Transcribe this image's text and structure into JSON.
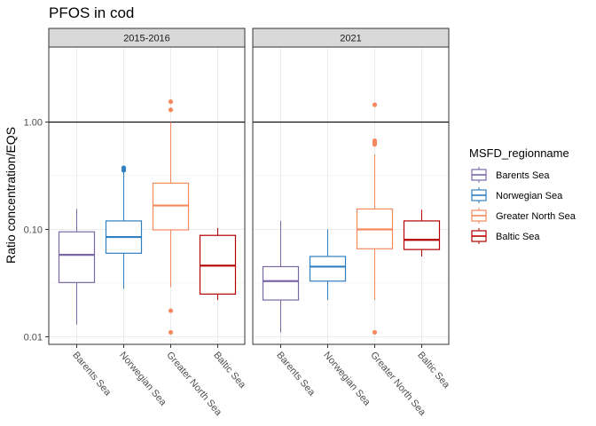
{
  "chart_data": {
    "type": "boxplot",
    "title": "PFOS in cod",
    "ylabel": "Ratio concentration/EQS",
    "xlabel": "",
    "y_scale": "log10",
    "ylim": [
      0.0085,
      5.0
    ],
    "y_ticks": [
      0.01,
      0.1,
      1.0
    ],
    "y_tick_labels": [
      "0.01",
      "0.10",
      "1.00"
    ],
    "reference_line": 1.0,
    "grid": true,
    "legend": {
      "title": "MSFD_regionname",
      "position": "right",
      "entries": [
        "Barents Sea",
        "Norwegian Sea",
        "Greater North Sea",
        "Baltic Sea"
      ]
    },
    "categories": [
      "Barents Sea",
      "Norwegian Sea",
      "Greater North Sea",
      "Baltic Sea"
    ],
    "colors": {
      "Barents Sea": "#7a68a6",
      "Norwegian Sea": "#2f7fc1",
      "Greater North Sea": "#f4895f",
      "Baltic Sea": "#b30000"
    },
    "panels": [
      {
        "label": "2015-2016",
        "boxes": [
          {
            "category": "Barents Sea",
            "min": 0.013,
            "q1": 0.032,
            "median": 0.058,
            "q3": 0.095,
            "max": 0.155,
            "outliers": []
          },
          {
            "category": "Norwegian Sea",
            "min": 0.028,
            "q1": 0.06,
            "median": 0.085,
            "q3": 0.12,
            "max": 0.34,
            "outliers": [
              0.355,
              0.375
            ]
          },
          {
            "category": "Greater North Sea",
            "min": 0.029,
            "q1": 0.099,
            "median": 0.167,
            "q3": 0.27,
            "max": 1.0,
            "outliers": [
              1.55,
              1.3,
              0.0175,
              0.011
            ]
          },
          {
            "category": "Baltic Sea",
            "min": 0.022,
            "q1": 0.025,
            "median": 0.046,
            "q3": 0.088,
            "max": 0.103,
            "outliers": []
          }
        ]
      },
      {
        "label": "2021",
        "boxes": [
          {
            "category": "Barents Sea",
            "min": 0.011,
            "q1": 0.022,
            "median": 0.033,
            "q3": 0.045,
            "max": 0.12,
            "outliers": []
          },
          {
            "category": "Norwegian Sea",
            "min": 0.022,
            "q1": 0.033,
            "median": 0.045,
            "q3": 0.056,
            "max": 0.1,
            "outliers": []
          },
          {
            "category": "Greater North Sea",
            "min": 0.022,
            "q1": 0.066,
            "median": 0.1,
            "q3": 0.155,
            "max": 0.5,
            "outliers": [
              1.45,
              0.67,
              0.64,
              0.62,
              0.011
            ]
          },
          {
            "category": "Baltic Sea",
            "min": 0.056,
            "q1": 0.065,
            "median": 0.08,
            "q3": 0.12,
            "max": 0.152,
            "outliers": []
          }
        ]
      }
    ]
  }
}
